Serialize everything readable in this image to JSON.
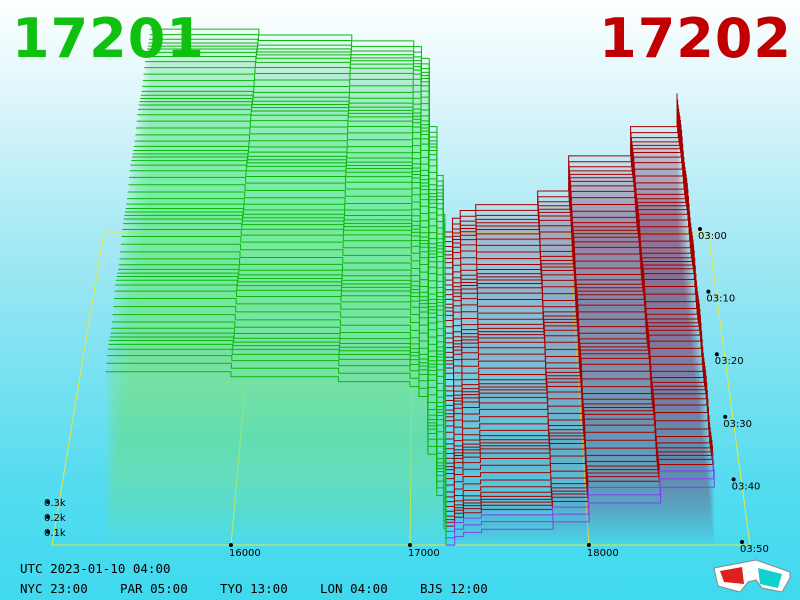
{
  "header": {
    "bid_price": "17201",
    "ask_price": "17202",
    "bid_color": "#10c010",
    "ask_color": "#c00000"
  },
  "chart_data": {
    "type": "area",
    "title": "",
    "xlabel": "",
    "ylabel": "",
    "x_ticks": [
      "16000",
      "17000",
      "18000"
    ],
    "y_ticks": [
      "0.1k",
      "0.2k",
      "0.3k"
    ],
    "z_ticks": [
      "03:00",
      "03:10",
      "03:20",
      "03:30",
      "03:40",
      "03:50"
    ],
    "xlim": [
      15000,
      18900
    ],
    "zlim": [
      "03:00",
      "03:50"
    ],
    "grid": true,
    "series": [
      {
        "side": "bid",
        "color": "#0cb80c",
        "depth_curve": {
          "price": [
            15300,
            16000,
            16600,
            17000,
            17050,
            17100,
            17150,
            17190,
            17201
          ],
          "cumulative_volume_k": [
            1.05,
            1.02,
            0.99,
            0.96,
            0.9,
            0.55,
            0.3,
            0.1,
            0
          ]
        }
      },
      {
        "side": "ask",
        "color": "#a50000",
        "depth_curve": {
          "price": [
            17202,
            17250,
            17300,
            17400,
            17800,
            18000,
            18400,
            18700
          ],
          "cumulative_volume_k": [
            0,
            0.08,
            0.12,
            0.15,
            0.22,
            0.4,
            0.55,
            0.72
          ]
        }
      }
    ],
    "snapshots": 66
  },
  "footer": {
    "utc": "UTC 2023-01-10 04:00",
    "nyc": "NYC 23:00",
    "par": "PAR 05:00",
    "tyo": "TYO 13:00",
    "lon": "LON 04:00",
    "bjs": "BJS 12:00"
  },
  "icons": {
    "glasses": "3d-glasses-icon"
  }
}
